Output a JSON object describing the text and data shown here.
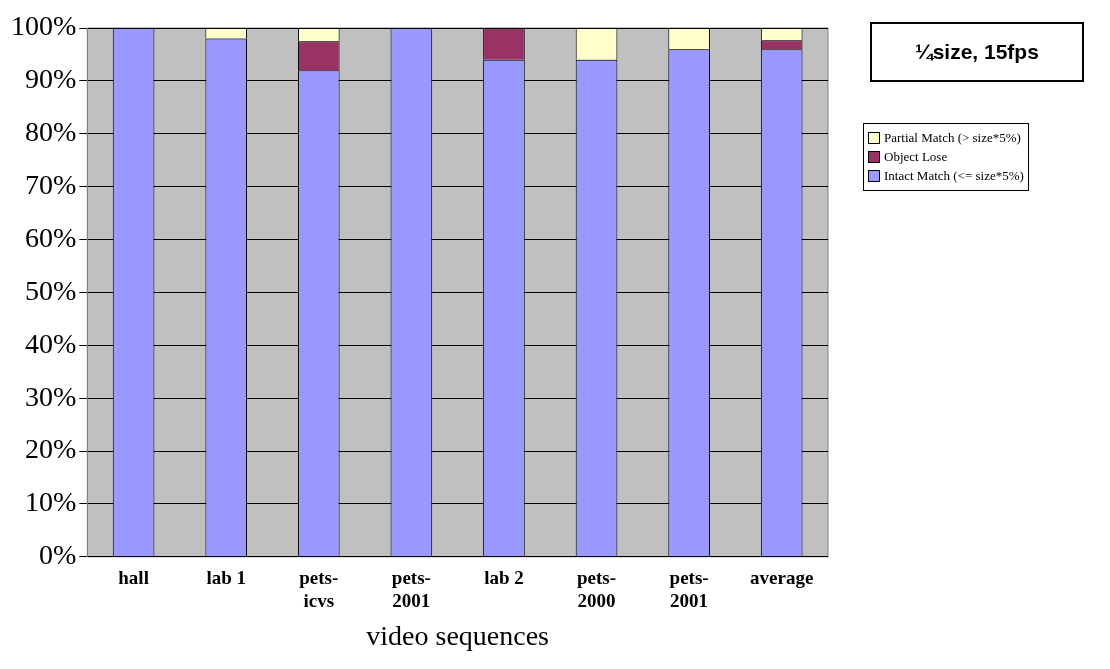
{
  "chart_data": {
    "type": "bar",
    "title": "¼size, 15fps",
    "xlabel": "video sequences",
    "stacked": true,
    "categories": [
      "hall",
      "lab 1",
      "pets-icvs",
      "pets-2001",
      "lab 2",
      "pets-2000",
      "pets-2001",
      "average"
    ],
    "series": [
      {
        "name": "Intact Match (<= size*5%)",
        "color": "#9999ff",
        "values": [
          100,
          98,
          92,
          100,
          94,
          94,
          96,
          96
        ]
      },
      {
        "name": "Object Lose",
        "color": "#993366",
        "values": [
          0,
          0,
          5.5,
          0,
          6,
          0,
          0,
          1.7
        ]
      },
      {
        "name": "Partial Match (> size*5%)",
        "color": "#ffffcc",
        "values": [
          0,
          2,
          2.5,
          0,
          0,
          6,
          4,
          2.3
        ]
      }
    ],
    "ylim": [
      0,
      100
    ],
    "yticks": [
      {
        "value": 0,
        "label": "0%"
      },
      {
        "value": 10,
        "label": "10%"
      },
      {
        "value": 20,
        "label": "20%"
      },
      {
        "value": 30,
        "label": "30%"
      },
      {
        "value": 40,
        "label": "40%"
      },
      {
        "value": 50,
        "label": "50%"
      },
      {
        "value": 60,
        "label": "60%"
      },
      {
        "value": 70,
        "label": "70%"
      },
      {
        "value": 80,
        "label": "80%"
      },
      {
        "value": 90,
        "label": "90%"
      },
      {
        "value": 100,
        "label": "100%"
      }
    ],
    "grid": "y",
    "legend": "right"
  }
}
